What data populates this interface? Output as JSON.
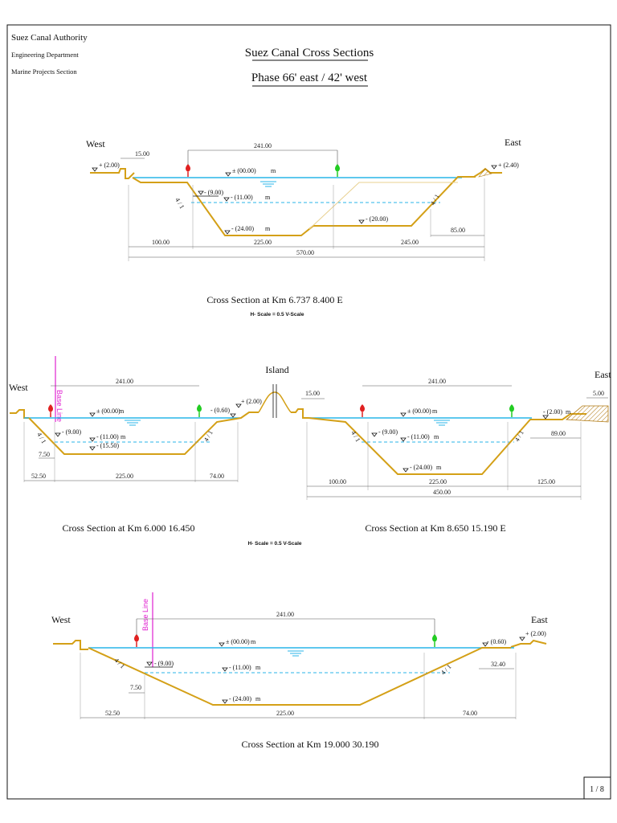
{
  "header": {
    "org": "Suez Canal Authority",
    "dept": "Engineering Department",
    "section": "Marine Projects Section"
  },
  "title": {
    "line1": "Suez Canal Cross Sections",
    "line2": "Phase 66' east / 42' west"
  },
  "common": {
    "west": "West",
    "east": "East",
    "island": "Island",
    "base_line": "Base Line",
    "scale_note": "H- Scale = 0.5 V-Scale",
    "slope": "4 / 1",
    "unit": "m"
  },
  "section1": {
    "caption": "Cross Section at Km 6.737    8.400  E",
    "levels": {
      "west_bank": "+ (2.00)",
      "east_bank": "+ (2.40)",
      "water": "± (00.00)",
      "l9": "- (9.00)",
      "l11": "- (11.00)",
      "l24": "- (24.00)",
      "l20": "- (20.00)"
    },
    "dims": {
      "top": "241.00",
      "d15": "15.00",
      "d100": "100.00",
      "d225": "225.00",
      "d245": "245.00",
      "d85": "85.00",
      "total": "570.00"
    }
  },
  "section2": {
    "caption": "Cross Section at Km  6.000    16.450",
    "levels": {
      "l9": "- (9.00)",
      "l11": "- (11.00)",
      "l1550": "- (15.50)",
      "water": "± (00.00)",
      "l060": "- (0.60)",
      "island_bank": "+ (2.00)"
    },
    "dims": {
      "top": "241.00",
      "d750": "7.50",
      "d5250": "52.50",
      "d225": "225.00",
      "d74": "74.00"
    }
  },
  "section3": {
    "caption": "Cross Section at  Km 8.650    15.190  E",
    "levels": {
      "water": "± (00.00)",
      "l9": "- (9.00)",
      "l11": "- (11.00)",
      "l24": "- (24.00)",
      "l2": "- (2.00)"
    },
    "dims": {
      "top": "241.00",
      "d15": "15.00",
      "d5": "5.00",
      "d89": "89.00",
      "d100": "100.00",
      "d225": "225.00",
      "d125": "125.00",
      "total": "450.00"
    }
  },
  "section4": {
    "caption": "Cross Section at  Km  19.000    30.190",
    "levels": {
      "water": "± (00.00)",
      "l9": "- (9.00)",
      "l11": "- (11.00)",
      "l24": "- (24.00)",
      "l060": "- (0.60)",
      "east_bank": "+ (2.00)"
    },
    "dims": {
      "top": "241.00",
      "d750": "7.50",
      "d5250": "52.50",
      "d225": "225.00",
      "d74": "74.00",
      "d3240": "32.40"
    }
  },
  "page_number": "1 / 8",
  "colors": {
    "water": "#29b6e8",
    "bed": "#d4a017",
    "red_marker": "#e02020",
    "green_marker": "#22cc22",
    "base_line": "#e020d0"
  }
}
